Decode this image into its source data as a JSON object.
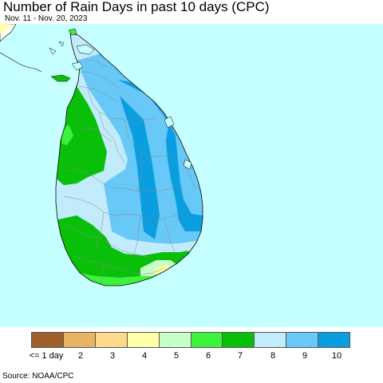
{
  "title": "Number of Rain Days in past 10 days (CPC)",
  "subtitle": "Nov. 11 - Nov. 20, 2023",
  "legend": {
    "colors": [
      "#a0602c",
      "#e8b463",
      "#fdd98a",
      "#ffffa8",
      "#c8ffc8",
      "#3cf23c",
      "#0abf0a",
      "#c2ecfb",
      "#68c8f8",
      "#0a9ee0"
    ],
    "labels": [
      "<= 1 day",
      "2",
      "3",
      "4",
      "5",
      "6",
      "7",
      "8",
      "9",
      "10"
    ]
  },
  "colors": {
    "ocean": "#c6ffff",
    "land_default": "#c2ecfb",
    "mainland_india": "#fffff0"
  },
  "source": "Source: NOAA/CPC"
}
